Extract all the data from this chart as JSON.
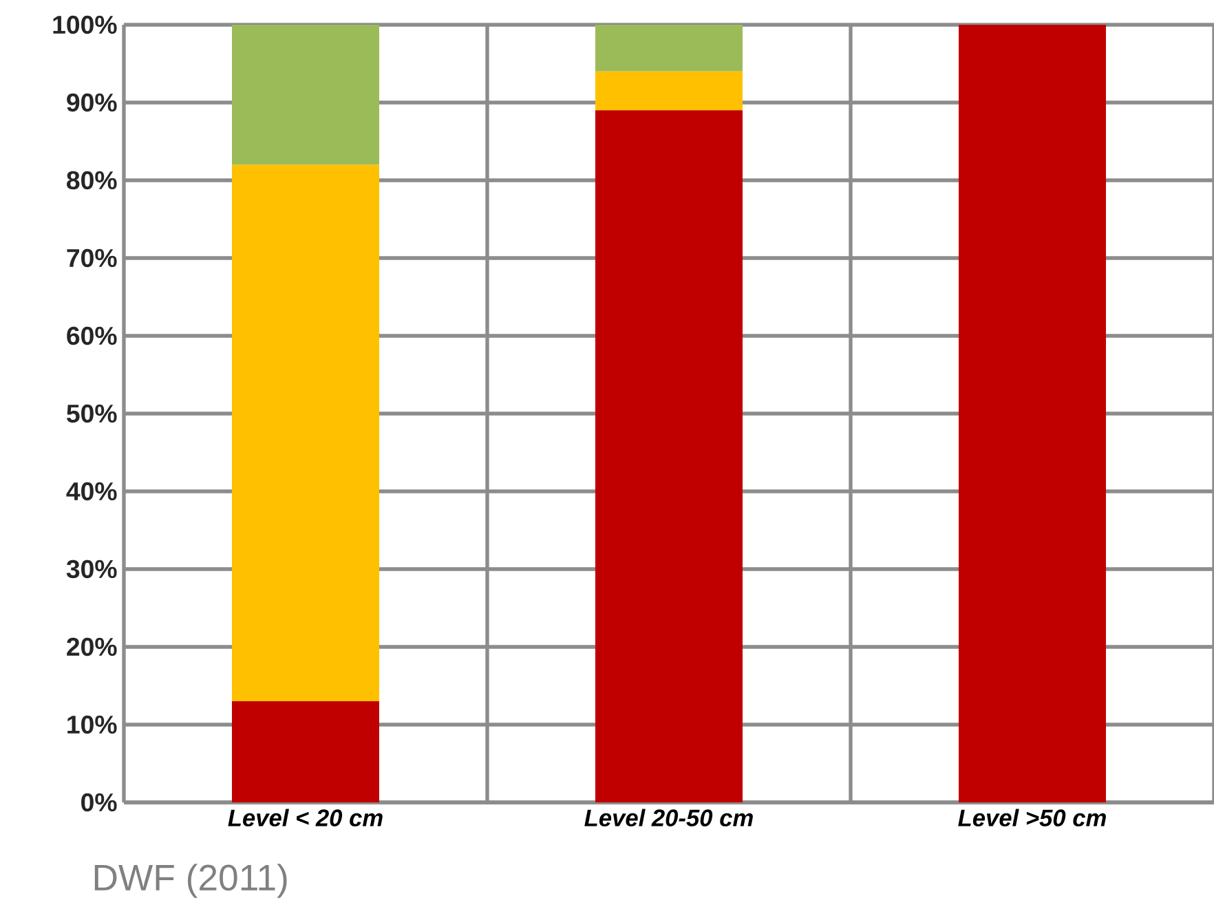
{
  "chart_data": {
    "type": "bar",
    "stacked": true,
    "categories": [
      "Level < 20 cm",
      "Level 20-50 cm",
      "Level >50 cm"
    ],
    "series": [
      {
        "color": "#c00000",
        "values": [
          13,
          89,
          100
        ]
      },
      {
        "color": "#ffc000",
        "values": [
          69,
          5,
          0
        ]
      },
      {
        "color": "#9bbb59",
        "values": [
          18,
          6,
          0
        ]
      }
    ],
    "ylim": [
      0,
      100
    ],
    "yticks": [
      {
        "value": 0,
        "label": "0%"
      },
      {
        "value": 10,
        "label": "10%"
      },
      {
        "value": 20,
        "label": "20%"
      },
      {
        "value": 30,
        "label": "30%"
      },
      {
        "value": 40,
        "label": "40%"
      },
      {
        "value": 50,
        "label": "50%"
      },
      {
        "value": 60,
        "label": "60%"
      },
      {
        "value": 70,
        "label": "70%"
      },
      {
        "value": 80,
        "label": "80%"
      },
      {
        "value": 90,
        "label": "90%"
      },
      {
        "value": 100,
        "label": "100%"
      }
    ],
    "grid": true,
    "annotations": [
      "DWF (2011)"
    ]
  }
}
